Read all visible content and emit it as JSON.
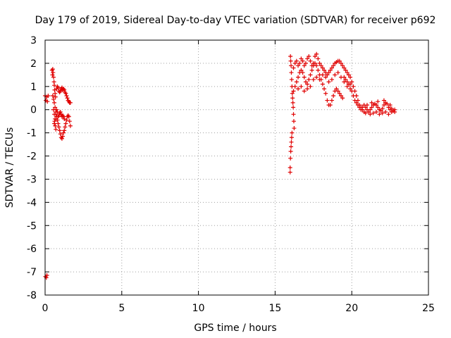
{
  "chart_data": {
    "type": "scatter",
    "title": "Day 179 of 2019, Sidereal Day-to-day VTEC variation (SDTVAR) for receiver p692",
    "xlabel": "GPS time / hours",
    "ylabel": "SDTVAR / TECUs",
    "xlim": [
      0,
      25
    ],
    "ylim": [
      -8,
      3
    ],
    "xticks": [
      0,
      5,
      10,
      15,
      20,
      25
    ],
    "yticks": [
      -8,
      -7,
      -6,
      -5,
      -4,
      -3,
      -2,
      -1,
      0,
      1,
      2,
      3
    ],
    "xtick_labels": [
      "0",
      "5",
      "10",
      "15",
      "20",
      "25"
    ],
    "ytick_labels": [
      "-8",
      "-7",
      "-6",
      "-5",
      "-4",
      "-3",
      "-2",
      "-1",
      "0",
      "1",
      "2",
      "3"
    ],
    "grid": true,
    "marker": "+",
    "color": "#e00000",
    "series": [
      {
        "name": "SDTVAR",
        "points": [
          [
            0.0,
            0.6
          ],
          [
            0.05,
            0.4
          ],
          [
            0.1,
            0.55
          ],
          [
            0.15,
            0.35
          ],
          [
            0.2,
            0.6
          ],
          [
            0.02,
            -7.2
          ],
          [
            0.08,
            -7.25
          ],
          [
            0.12,
            -7.15
          ],
          [
            0.5,
            1.75
          ],
          [
            0.52,
            1.6
          ],
          [
            0.55,
            1.4
          ],
          [
            0.58,
            1.2
          ],
          [
            0.6,
            1.05
          ],
          [
            0.62,
            0.85
          ],
          [
            0.65,
            0.7
          ],
          [
            0.68,
            0.55
          ],
          [
            0.5,
            0.6
          ],
          [
            0.55,
            0.45
          ],
          [
            0.6,
            0.3
          ],
          [
            0.65,
            0.1
          ],
          [
            0.7,
            -0.1
          ],
          [
            0.75,
            -0.3
          ],
          [
            0.8,
            -0.45
          ],
          [
            0.85,
            -0.6
          ],
          [
            0.9,
            -0.75
          ],
          [
            0.95,
            -0.9
          ],
          [
            1.0,
            -1.05
          ],
          [
            1.05,
            -1.2
          ],
          [
            1.1,
            -1.25
          ],
          [
            1.15,
            -1.15
          ],
          [
            1.2,
            -1.0
          ],
          [
            1.25,
            -0.9
          ],
          [
            1.3,
            -0.75
          ],
          [
            1.35,
            -0.6
          ],
          [
            1.4,
            -0.45
          ],
          [
            1.45,
            -0.3
          ],
          [
            1.5,
            -0.25
          ],
          [
            1.55,
            -0.3
          ],
          [
            1.6,
            -0.5
          ],
          [
            1.65,
            -0.7
          ],
          [
            0.6,
            -0.6
          ],
          [
            0.65,
            -0.4
          ],
          [
            0.7,
            -0.2
          ],
          [
            0.75,
            0.0
          ],
          [
            0.8,
            -0.1
          ],
          [
            0.85,
            -0.3
          ],
          [
            0.9,
            -0.25
          ],
          [
            0.95,
            -0.15
          ],
          [
            1.0,
            -0.1
          ],
          [
            1.05,
            -0.2
          ],
          [
            1.1,
            -0.3
          ],
          [
            1.15,
            -0.25
          ],
          [
            1.2,
            -0.3
          ],
          [
            1.25,
            -0.4
          ],
          [
            0.75,
            0.9
          ],
          [
            0.8,
            1.0
          ],
          [
            0.85,
            0.95
          ],
          [
            0.9,
            0.8
          ],
          [
            0.95,
            0.75
          ],
          [
            1.0,
            0.8
          ],
          [
            1.05,
            0.9
          ],
          [
            1.1,
            0.95
          ],
          [
            1.15,
            0.85
          ],
          [
            1.2,
            0.9
          ],
          [
            1.25,
            0.85
          ],
          [
            1.3,
            0.75
          ],
          [
            1.35,
            0.7
          ],
          [
            1.4,
            0.6
          ],
          [
            1.45,
            0.5
          ],
          [
            1.5,
            0.4
          ],
          [
            1.55,
            0.35
          ],
          [
            1.6,
            0.3
          ],
          [
            1.65,
            0.3
          ],
          [
            0.55,
            0.0
          ],
          [
            0.6,
            -0.2
          ],
          [
            0.62,
            -0.5
          ],
          [
            0.66,
            -0.7
          ],
          [
            0.7,
            -0.85
          ],
          [
            0.45,
            1.7
          ],
          [
            0.48,
            1.5
          ],
          [
            16.0,
            2.3
          ],
          [
            16.02,
            2.1
          ],
          [
            16.04,
            1.9
          ],
          [
            16.06,
            1.6
          ],
          [
            16.08,
            1.3
          ],
          [
            16.1,
            1.0
          ],
          [
            16.12,
            0.7
          ],
          [
            16.14,
            0.5
          ],
          [
            16.16,
            0.3
          ],
          [
            16.18,
            0.1
          ],
          [
            16.2,
            -0.2
          ],
          [
            16.22,
            -0.5
          ],
          [
            16.24,
            -0.8
          ],
          [
            16.1,
            -1.0
          ],
          [
            16.08,
            -1.2
          ],
          [
            16.06,
            -1.4
          ],
          [
            16.04,
            -1.6
          ],
          [
            16.02,
            -1.8
          ],
          [
            16.0,
            -2.1
          ],
          [
            15.98,
            -2.5
          ],
          [
            15.98,
            -2.7
          ],
          [
            16.2,
            0.8
          ],
          [
            16.3,
            1.0
          ],
          [
            16.4,
            1.2
          ],
          [
            16.5,
            1.4
          ],
          [
            16.6,
            1.6
          ],
          [
            16.7,
            1.7
          ],
          [
            16.8,
            1.6
          ],
          [
            16.9,
            1.4
          ],
          [
            17.0,
            1.2
          ],
          [
            17.1,
            1.1
          ],
          [
            17.2,
            1.3
          ],
          [
            17.3,
            1.5
          ],
          [
            17.4,
            1.7
          ],
          [
            17.5,
            1.9
          ],
          [
            17.6,
            2.0
          ],
          [
            17.7,
            1.9
          ],
          [
            17.8,
            1.7
          ],
          [
            17.9,
            1.5
          ],
          [
            18.0,
            1.3
          ],
          [
            18.1,
            1.1
          ],
          [
            18.2,
            0.9
          ],
          [
            18.3,
            0.7
          ],
          [
            18.4,
            0.4
          ],
          [
            18.5,
            0.2
          ],
          [
            18.6,
            0.2
          ],
          [
            18.7,
            0.4
          ],
          [
            18.8,
            0.6
          ],
          [
            18.9,
            0.8
          ],
          [
            19.0,
            0.9
          ],
          [
            19.1,
            0.8
          ],
          [
            19.2,
            0.7
          ],
          [
            19.3,
            0.6
          ],
          [
            19.4,
            0.5
          ],
          [
            16.2,
            1.8
          ],
          [
            16.3,
            2.0
          ],
          [
            16.4,
            2.1
          ],
          [
            16.5,
            1.9
          ],
          [
            16.6,
            2.0
          ],
          [
            16.7,
            2.2
          ],
          [
            16.8,
            2.1
          ],
          [
            16.9,
            1.9
          ],
          [
            17.0,
            2.0
          ],
          [
            17.1,
            2.2
          ],
          [
            17.2,
            2.3
          ],
          [
            17.3,
            2.1
          ],
          [
            17.4,
            1.9
          ],
          [
            17.5,
            2.0
          ],
          [
            17.6,
            2.3
          ],
          [
            17.7,
            2.4
          ],
          [
            17.8,
            2.2
          ],
          [
            17.9,
            2.0
          ],
          [
            18.0,
            1.9
          ],
          [
            18.1,
            1.8
          ],
          [
            18.2,
            1.7
          ],
          [
            18.3,
            1.6
          ],
          [
            18.4,
            1.5
          ],
          [
            18.5,
            1.6
          ],
          [
            18.6,
            1.7
          ],
          [
            18.7,
            1.8
          ],
          [
            18.8,
            1.9
          ],
          [
            18.9,
            2.0
          ],
          [
            19.0,
            2.05
          ],
          [
            19.1,
            2.1
          ],
          [
            19.2,
            2.1
          ],
          [
            19.3,
            2.0
          ],
          [
            19.4,
            1.9
          ],
          [
            19.5,
            1.8
          ],
          [
            19.6,
            1.7
          ],
          [
            19.7,
            1.6
          ],
          [
            19.8,
            1.5
          ],
          [
            19.9,
            1.4
          ],
          [
            20.0,
            1.2
          ],
          [
            20.1,
            1.0
          ],
          [
            20.2,
            0.8
          ],
          [
            20.3,
            0.6
          ],
          [
            20.4,
            0.4
          ],
          [
            20.5,
            0.2
          ],
          [
            20.6,
            0.1
          ],
          [
            20.7,
            0.0
          ],
          [
            20.8,
            -0.1
          ],
          [
            20.9,
            -0.15
          ],
          [
            19.5,
            1.4
          ],
          [
            19.6,
            1.3
          ],
          [
            19.7,
            1.2
          ],
          [
            19.8,
            1.1
          ],
          [
            19.9,
            0.9
          ],
          [
            20.0,
            0.8
          ],
          [
            20.1,
            0.6
          ],
          [
            20.2,
            0.4
          ],
          [
            20.3,
            0.3
          ],
          [
            20.4,
            0.2
          ],
          [
            20.5,
            0.1
          ],
          [
            20.6,
            0.0
          ],
          [
            20.7,
            0.1
          ],
          [
            20.8,
            0.2
          ],
          [
            20.9,
            0.1
          ],
          [
            21.0,
            0.0
          ],
          [
            21.1,
            -0.1
          ],
          [
            21.2,
            0.0
          ],
          [
            21.3,
            0.1
          ],
          [
            21.4,
            0.2
          ],
          [
            21.5,
            0.25
          ],
          [
            21.6,
            0.2
          ],
          [
            21.7,
            0.1
          ],
          [
            21.8,
            0.0
          ],
          [
            21.9,
            -0.05
          ],
          [
            22.0,
            0.05
          ],
          [
            22.1,
            0.2
          ],
          [
            22.2,
            0.3
          ],
          [
            22.3,
            0.25
          ],
          [
            22.4,
            0.1
          ],
          [
            22.5,
            0.0
          ],
          [
            22.6,
            0.05
          ],
          [
            22.7,
            -0.05
          ],
          [
            22.8,
            -0.1
          ],
          [
            21.2,
            -0.2
          ],
          [
            21.4,
            -0.15
          ],
          [
            21.6,
            -0.1
          ],
          [
            21.8,
            -0.2
          ],
          [
            22.0,
            -0.15
          ],
          [
            22.2,
            -0.1
          ],
          [
            22.4,
            -0.2
          ],
          [
            22.6,
            -0.1
          ],
          [
            21.0,
            0.2
          ],
          [
            21.3,
            0.3
          ],
          [
            21.7,
            0.35
          ],
          [
            22.1,
            0.4
          ],
          [
            22.5,
            0.2
          ],
          [
            22.8,
            0.0
          ],
          [
            16.5,
            0.9
          ],
          [
            16.7,
            1.0
          ],
          [
            16.9,
            0.8
          ],
          [
            17.1,
            0.9
          ],
          [
            17.3,
            1.0
          ],
          [
            17.5,
            1.3
          ],
          [
            17.7,
            1.4
          ],
          [
            17.9,
            1.3
          ],
          [
            18.1,
            1.5
          ],
          [
            18.3,
            1.4
          ],
          [
            18.5,
            1.2
          ],
          [
            18.7,
            1.3
          ],
          [
            18.9,
            1.5
          ],
          [
            19.1,
            1.6
          ],
          [
            19.3,
            1.4
          ],
          [
            19.5,
            1.2
          ],
          [
            19.7,
            1.0
          ],
          [
            19.9,
            1.1
          ]
        ]
      }
    ]
  }
}
